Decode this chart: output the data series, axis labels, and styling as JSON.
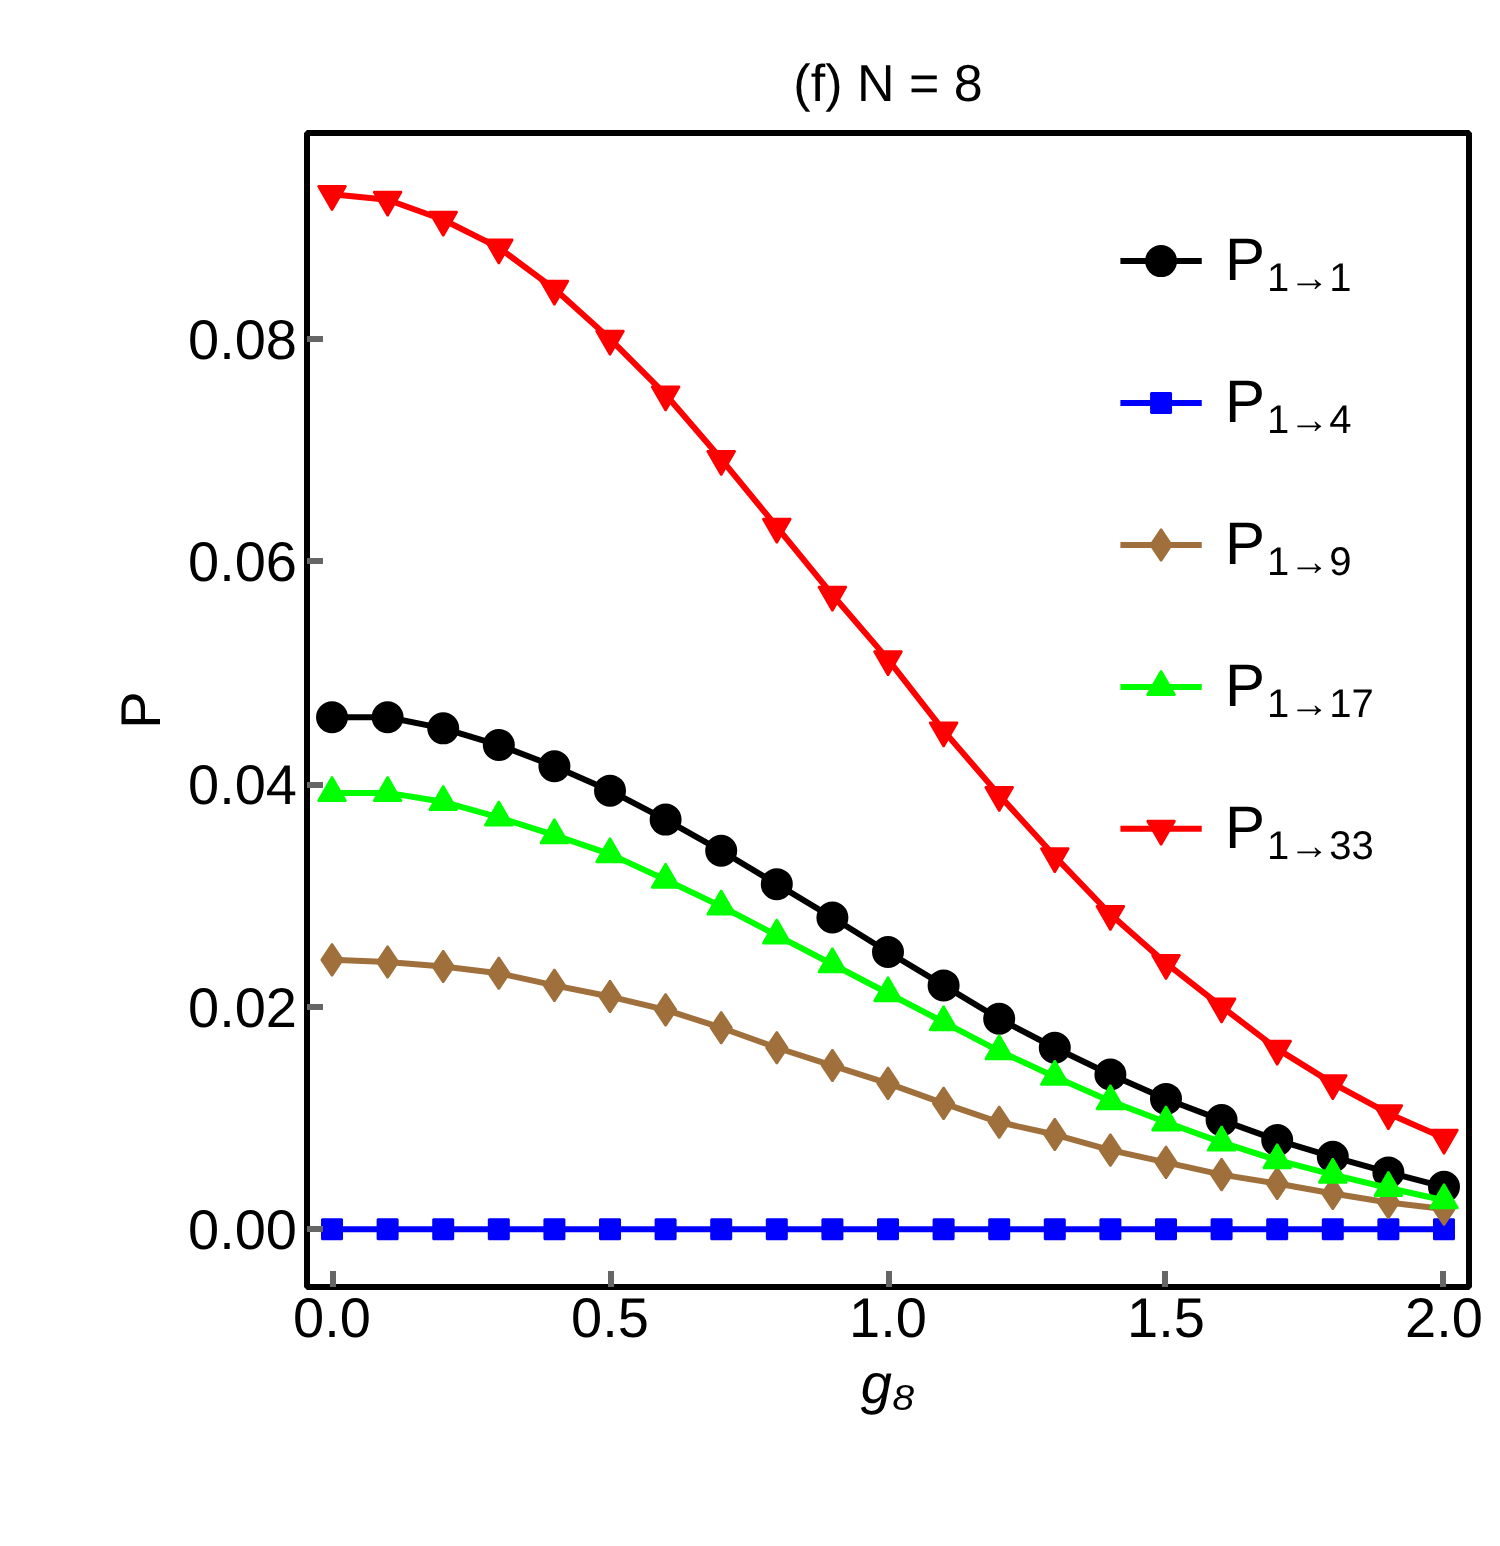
{
  "chart_data": {
    "type": "line",
    "title": "(f) N = 8",
    "xlabel": "g₈",
    "ylabel": "P",
    "x": [
      0.0,
      0.1,
      0.2,
      0.3,
      0.4,
      0.5,
      0.6,
      0.7,
      0.8,
      0.9,
      1.0,
      1.1,
      1.2,
      1.3,
      1.4,
      1.5,
      1.6,
      1.7,
      1.8,
      1.9,
      2.0
    ],
    "xlim": [
      -0.045,
      2.045
    ],
    "ylim": [
      -0.0052,
      0.0985
    ],
    "xticks": [
      {
        "value": 0,
        "label": "0.0"
      },
      {
        "value": 0.5,
        "label": "0.5"
      },
      {
        "value": 1,
        "label": "1.0"
      },
      {
        "value": 1.5,
        "label": "1.5"
      },
      {
        "value": 2,
        "label": "2.0"
      }
    ],
    "yticks": [
      {
        "value": 0,
        "label": "0.00"
      },
      {
        "value": 0.02,
        "label": "0.02"
      },
      {
        "value": 0.04,
        "label": "0.04"
      },
      {
        "value": 0.06,
        "label": "0.06"
      },
      {
        "value": 0.08,
        "label": "0.08"
      }
    ],
    "grid": false,
    "legend": "top right",
    "line_style": "solid",
    "series": [
      {
        "name": "P$_{1→1}$",
        "color": "#000000",
        "marker": "circle",
        "values": [
          0.046,
          0.046,
          0.045,
          0.0435,
          0.0416,
          0.0394,
          0.0368,
          0.034,
          0.031,
          0.028,
          0.0249,
          0.0219,
          0.0189,
          0.0163,
          0.0139,
          0.0117,
          0.0098,
          0.008,
          0.0065,
          0.0051,
          0.0038
        ]
      },
      {
        "name": "P$_{1→4}$",
        "color": "#0000ff",
        "marker": "square",
        "values": [
          0,
          0,
          0,
          0,
          0,
          0,
          0,
          0,
          0,
          0,
          0,
          0,
          0,
          0,
          0,
          0,
          0,
          0,
          0,
          0,
          0
        ]
      },
      {
        "name": "P$_{1→9}$",
        "color": "#a0703c",
        "marker": "diamond",
        "values": [
          0.0242,
          0.024,
          0.0236,
          0.023,
          0.0219,
          0.0209,
          0.0197,
          0.0181,
          0.0163,
          0.0147,
          0.0131,
          0.0113,
          0.0096,
          0.0085,
          0.0071,
          0.006,
          0.0049,
          0.0041,
          0.0032,
          0.0024,
          0.0018
        ]
      },
      {
        "name": "P$_{1→17}$",
        "color": "#00ff00",
        "marker": "triangle",
        "values": [
          0.0392,
          0.0392,
          0.0384,
          0.037,
          0.0354,
          0.0337,
          0.0314,
          0.029,
          0.0264,
          0.0238,
          0.0212,
          0.0186,
          0.016,
          0.0137,
          0.0115,
          0.0096,
          0.0078,
          0.0062,
          0.0049,
          0.0037,
          0.0026
        ]
      },
      {
        "name": "P$_{1→33}$",
        "color": "#ff0000",
        "marker": "triangle",
        "values": [
          0.093,
          0.0925,
          0.0907,
          0.0882,
          0.0845,
          0.08,
          0.075,
          0.0692,
          0.0631,
          0.057,
          0.0512,
          0.0448,
          0.039,
          0.0335,
          0.0283,
          0.0239,
          0.02,
          0.0162,
          0.0131,
          0.0104,
          0.0082
        ]
      }
    ]
  }
}
